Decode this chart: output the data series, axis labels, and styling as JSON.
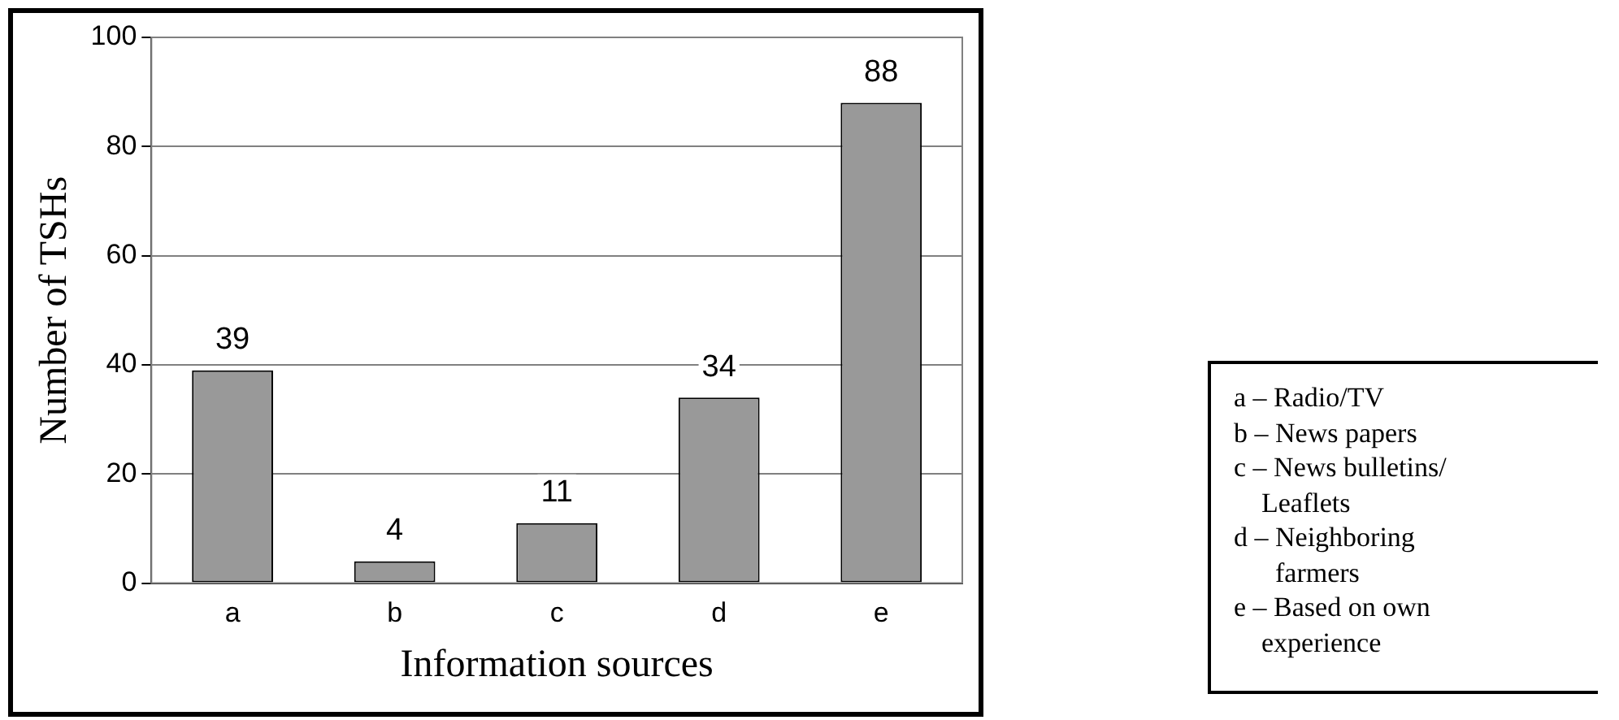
{
  "chart_data": {
    "type": "bar",
    "xlabel": "Information sources",
    "ylabel": "Number of TSHs",
    "categories": [
      "a",
      "b",
      "c",
      "d",
      "e"
    ],
    "values": [
      39,
      4,
      11,
      34,
      88
    ],
    "color": "#999999",
    "ylim": [
      0,
      100
    ],
    "yticks": [
      0,
      20,
      40,
      60,
      80,
      100
    ],
    "grid": "y",
    "legend": false,
    "data_labels": true,
    "annotations": [
      "a – Radio/TV\nb – News papers\nc – News bulletins/\n    Leaflets\nd – Neighboring\n      farmers\ne – Based on own\n    experience"
    ]
  }
}
